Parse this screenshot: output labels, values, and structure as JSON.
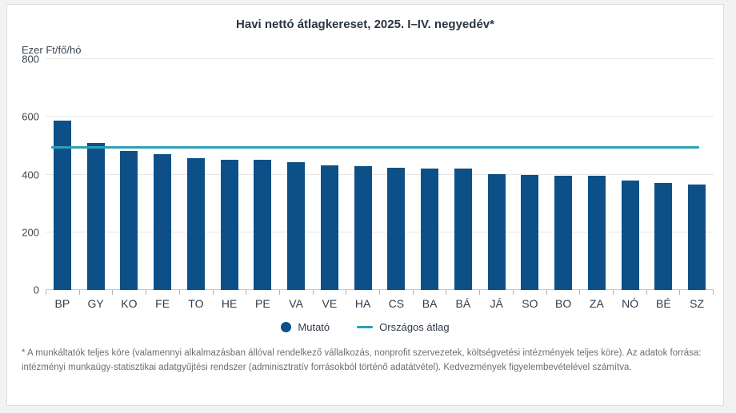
{
  "page": {
    "background_color": "#f2f2f2",
    "card_background": "#ffffff",
    "card_border_color": "#dddddd"
  },
  "header": {
    "title": "Havi nettó átlagkereset, 2025. I–IV. negyedév*"
  },
  "chart_data": {
    "type": "bar",
    "title": "Havi nettó átlagkereset, 2025. I–IV. negyedév*",
    "unit_label": "Ezer Ft/fő/hó",
    "categories": [
      "BP",
      "GY",
      "KO",
      "FE",
      "TO",
      "HE",
      "PE",
      "VA",
      "VE",
      "HA",
      "CS",
      "BA",
      "BÁ",
      "JÁ",
      "SO",
      "BO",
      "ZA",
      "NÓ",
      "BÉ",
      "SZ"
    ],
    "series": [
      {
        "name": "Mutató",
        "values": [
          586,
          509,
          482,
          470,
          457,
          452,
          451,
          442,
          431,
          429,
          424,
          421,
          420,
          402,
          400,
          396,
          395,
          378,
          372,
          366
        ],
        "color": "#0d5087"
      }
    ],
    "average_line": {
      "label": "Országos átlag",
      "value": 489,
      "color": "#2da0b8"
    },
    "ylim": [
      0,
      800
    ],
    "yticks": [
      0,
      200,
      400,
      600,
      800
    ],
    "grid": true,
    "legend_position": "bottom"
  },
  "legend": {
    "series_label": "Mutató",
    "average_label": "Országos átlag"
  },
  "footnote": {
    "text": "* A munkáltatók teljes köre (valamennyi alkalmazásban állóval rendelkező vállalkozás, nonprofit szervezetek, költségvetési intézmények teljes köre). Az adatok forrása: intézményi munkaügy-statisztikai adatgyűjtési rendszer (adminisztratív forrásokból történő adatátvétel). Kedvezmények figyelembevételével számítva."
  }
}
